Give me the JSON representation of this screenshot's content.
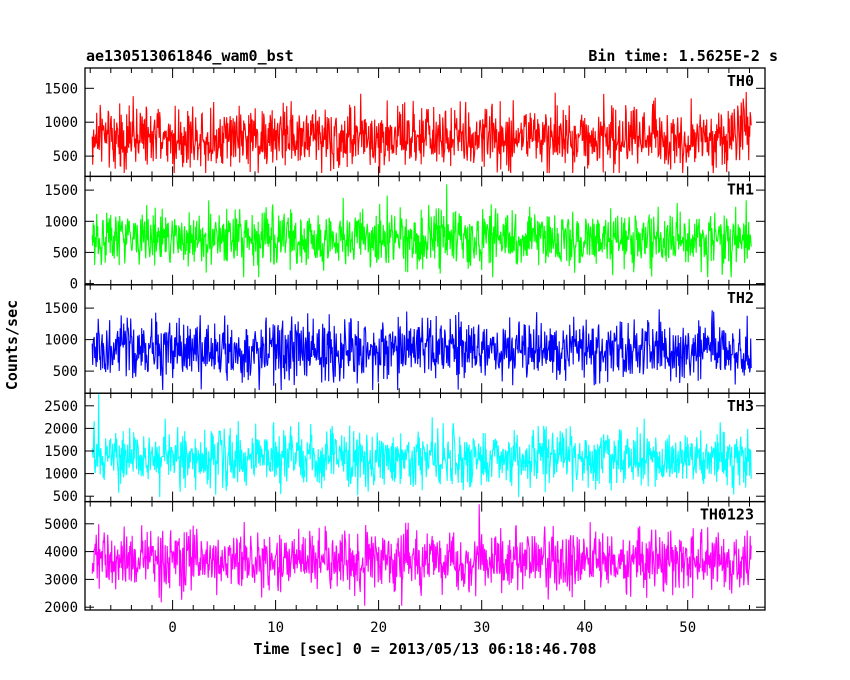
{
  "chart_data": {
    "type": "line",
    "title_left": "ae130513061846_wam0_bst",
    "title_right": "Bin time: 1.5625E-2 s",
    "xlabel": "Time [sec] 0 = 2013/05/13 06:18:46.708",
    "ylabel": "Counts/sec",
    "xlim": [
      -8.5,
      57.5
    ],
    "x_ticks": [
      0,
      10,
      20,
      30,
      40,
      50
    ],
    "data_range": [
      -7.8,
      56.2
    ],
    "panels": [
      {
        "name": "TH0",
        "color": "#ff0000",
        "ylim": [
          200,
          1800
        ],
        "y_ticks": [
          500,
          1000,
          1500
        ],
        "base": 780,
        "noise": 230,
        "floor": 250,
        "ceil": 1800
      },
      {
        "name": "TH1",
        "color": "#00ff00",
        "ylim": [
          -20,
          1720
        ],
        "y_ticks": [
          0,
          500,
          1000,
          1500
        ],
        "base": 720,
        "noise": 230,
        "floor": 100,
        "ceil": 1720
      },
      {
        "name": "TH2",
        "color": "#0000ff",
        "ylim": [
          150,
          1870
        ],
        "y_ticks": [
          500,
          1000,
          1500
        ],
        "base": 830,
        "noise": 240,
        "floor": 200,
        "ceil": 1870
      },
      {
        "name": "TH3",
        "color": "#00ffff",
        "ylim": [
          380,
          2780
        ],
        "y_ticks": [
          500,
          1000,
          1500,
          2000,
          2500
        ],
        "base": 1350,
        "noise": 320,
        "floor": 480,
        "ceil": 2780
      },
      {
        "name": "TH0123",
        "color": "#ff00ff",
        "ylim": [
          1900,
          5800
        ],
        "y_ticks": [
          2000,
          3000,
          4000,
          5000
        ],
        "base": 3680,
        "noise": 550,
        "floor": 2050,
        "ceil": 5800
      }
    ]
  }
}
